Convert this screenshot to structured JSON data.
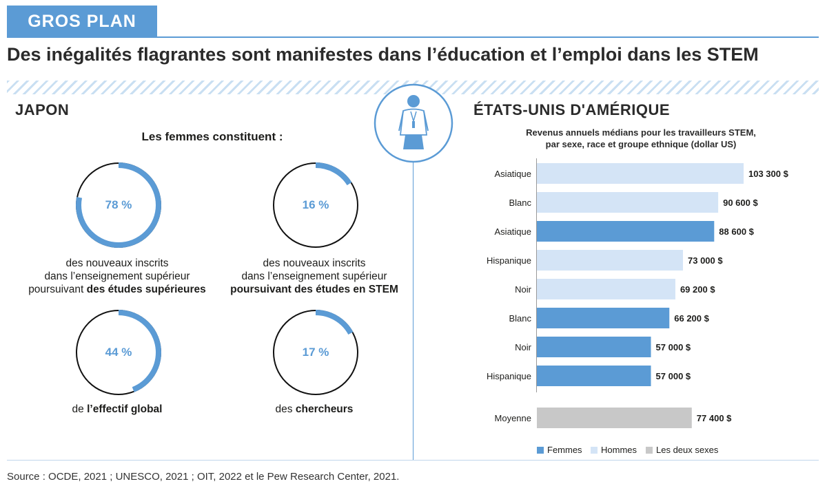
{
  "header": {
    "tag": "GROS PLAN",
    "title": "Des inégalités flagrantes sont manifestes dans l’éducation et l’emploi dans les STEM"
  },
  "japan": {
    "title": "JAPON",
    "subtitle": "Les femmes constituent :",
    "donuts": [
      {
        "value": "78 %",
        "pct": 78,
        "lines": [
          {
            "t": "des nouveaux inscrits"
          },
          {
            "t": "dans l’enseignement supérieur"
          },
          {
            "t": "poursuivant ",
            "b": "des études supérieures"
          }
        ]
      },
      {
        "value": "16 %",
        "pct": 16,
        "lines": [
          {
            "t": "des nouveaux inscrits"
          },
          {
            "t": "dans l’enseignement supérieur"
          },
          {
            "t": "",
            "b": "poursuivant des études en STEM"
          }
        ]
      },
      {
        "value": "44 %",
        "pct": 44,
        "lines": [
          {
            "t": "de ",
            "b": "l’effectif global"
          }
        ]
      },
      {
        "value": "17 %",
        "pct": 17,
        "lines": [
          {
            "t": "des ",
            "b": "chercheurs"
          }
        ]
      }
    ]
  },
  "usa": {
    "title": "ÉTATS-UNIS D'AMÉRIQUE",
    "subtitle_line1": "Revenus annuels médians pour les travailleurs STEM,",
    "subtitle_line2": "par sexe, race et groupe ethnique (dollar US)"
  },
  "chart_data": {
    "type": "bar",
    "orientation": "horizontal",
    "title": "Revenus annuels médians pour les travailleurs STEM, par sexe, race et groupe ethnique (dollar US)",
    "categories": [
      "Asiatique",
      "Blanc",
      "Asiatique",
      "Hispanique",
      "Noir",
      "Blanc",
      "Noir",
      "Hispanique",
      "Moyenne"
    ],
    "values": [
      103300,
      90600,
      88600,
      73000,
      69200,
      66200,
      57000,
      57000,
      77400
    ],
    "value_labels": [
      "103 300 $",
      "90 600 $",
      "88 600 $",
      "73 000 $",
      "69 200 $",
      "66 200 $",
      "57 000 $",
      "57 000 $",
      "77 400 $"
    ],
    "groups": [
      "Hommes",
      "Hommes",
      "Femmes",
      "Hommes",
      "Hommes",
      "Femmes",
      "Femmes",
      "Femmes",
      "Les deux sexes"
    ],
    "legend": [
      {
        "name": "Femmes",
        "color": "#5b9bd5"
      },
      {
        "name": "Hommes",
        "color": "#d4e4f6"
      },
      {
        "name": "Les deux sexes",
        "color": "#c8c8c8"
      }
    ],
    "legend_position": "bottom",
    "grid": false
  },
  "colors": {
    "accent": "#5b9bd5",
    "light": "#d4e4f6",
    "gray": "#c8c8c8"
  },
  "footer": {
    "source": "Source : OCDE, 2021 ; UNESCO, 2021 ; OIT, 2022 et le Pew Research Center, 2021."
  }
}
